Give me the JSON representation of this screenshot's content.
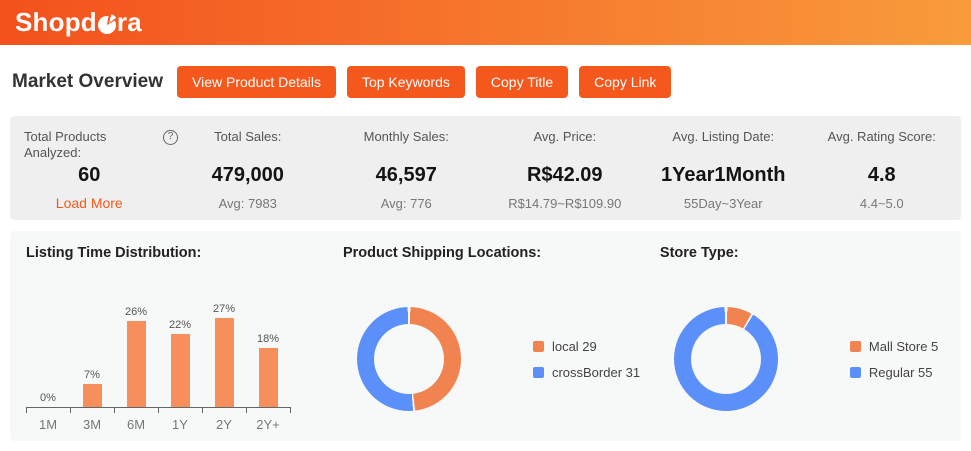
{
  "header": {
    "logo_prefix": "Shopd",
    "logo_suffix": "ra"
  },
  "page_title": "Market Overview",
  "toolbar": {
    "buttons": [
      "View Product Details",
      "Top Keywords",
      "Copy Title",
      "Copy Link"
    ]
  },
  "stats": {
    "columns": [
      {
        "label": "Total Products Analyzed:",
        "value": "60",
        "link": "Load More",
        "help_icon": "?"
      },
      {
        "label": "Total Sales:",
        "value": "479,000",
        "sub": "Avg: 7983"
      },
      {
        "label": "Monthly Sales:",
        "value": "46,597",
        "sub": "Avg: 776"
      },
      {
        "label": "Avg. Price:",
        "value": "R$42.09",
        "sub": "R$14.79~R$109.90"
      },
      {
        "label": "Avg. Listing Date:",
        "value": "1Year1Month",
        "sub": "55Day~3Year"
      },
      {
        "label": "Avg. Rating Score:",
        "value": "4.8",
        "sub": "4.4~5.0"
      }
    ]
  },
  "chart_data": [
    {
      "type": "bar",
      "title": "Listing Time Distribution:",
      "categories": [
        "1M",
        "3M",
        "6M",
        "1Y",
        "2Y",
        "2Y+"
      ],
      "values": [
        0,
        7,
        26,
        22,
        27,
        18
      ],
      "unit": "%",
      "ylim": [
        0,
        30
      ],
      "grid": false,
      "bar_color": "#f78f5c",
      "axis_color": "#666666"
    },
    {
      "type": "pie",
      "donut": true,
      "title": "Product Shipping Locations:",
      "legend_position": "right",
      "series": [
        {
          "name": "local",
          "value": 29,
          "color": "#f0834f"
        },
        {
          "name": "crossBorder",
          "value": 31,
          "color": "#5b8ff9"
        }
      ]
    },
    {
      "type": "pie",
      "donut": true,
      "title": "Store Type:",
      "legend_position": "right",
      "series": [
        {
          "name": "Mall Store",
          "value": 5,
          "color": "#f0834f"
        },
        {
          "name": "Regular",
          "value": 55,
          "color": "#5b8ff9"
        }
      ]
    }
  ],
  "colors": {
    "header_gradient_start": "#f3511d",
    "header_gradient_end": "#f99b3c",
    "accent_orange": "#f4581c",
    "stats_panel_gray": "#efefef",
    "chart_panel_gray": "#f7f8f8",
    "chart_blue": "#5b8ff9",
    "chart_orange": "#f0834f"
  }
}
